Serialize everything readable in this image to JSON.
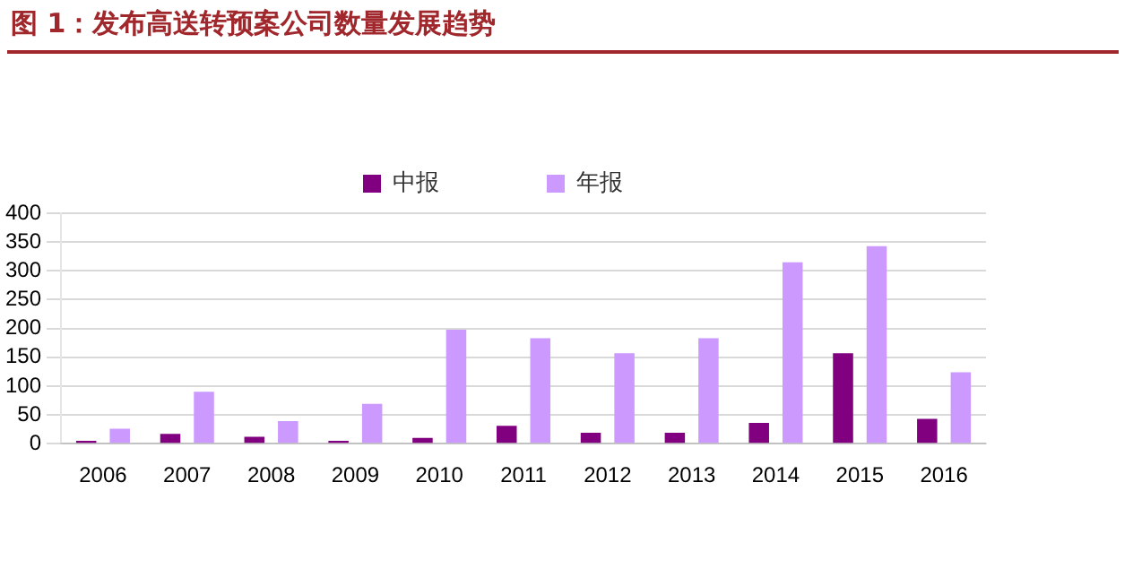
{
  "chart_data": {
    "type": "bar",
    "title": "图 1：发布高送转预案公司数量发展趋势",
    "categories": [
      "2006",
      "2007",
      "2008",
      "2009",
      "2010",
      "2011",
      "2012",
      "2013",
      "2014",
      "2015",
      "2016"
    ],
    "series": [
      {
        "name": "中报",
        "color": "#800080",
        "values": [
          5,
          17,
          12,
          5,
          10,
          31,
          19,
          19,
          36,
          157,
          43
        ]
      },
      {
        "name": "年报",
        "color": "#cc99ff",
        "values": [
          26,
          90,
          39,
          69,
          198,
          183,
          157,
          183,
          315,
          343,
          124
        ]
      }
    ],
    "ylim": [
      0,
      400
    ],
    "yticks": [
      0,
      50,
      100,
      150,
      200,
      250,
      300,
      350,
      400
    ],
    "grid": "y",
    "legend": "top"
  }
}
